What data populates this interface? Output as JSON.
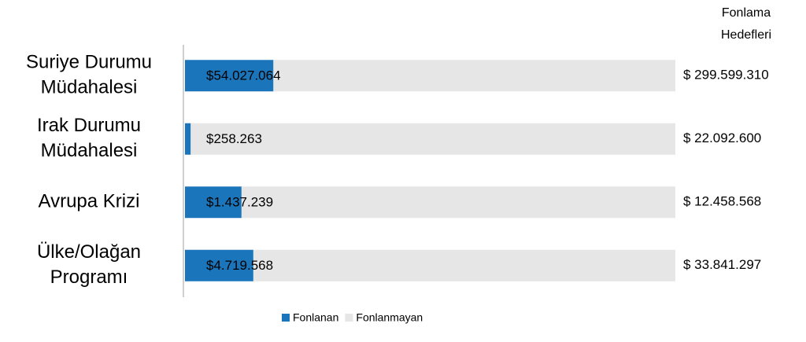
{
  "chart_data": {
    "type": "bar",
    "orientation": "horizontal",
    "stacking": "percent",
    "categories": [
      "Suriye Durumu\nMüdahalesi",
      "Irak Durumu\nMüdahalesi",
      "Avrupa Krizi",
      "Ülke/Olağan\nProgramı"
    ],
    "series": [
      {
        "name": "Fonlanan",
        "color": "#1b75bb",
        "values": [
          54027064,
          258263,
          1437239,
          4719568
        ],
        "value_labels": [
          "$54.027.064",
          "$258.263",
          "$1.437.239",
          "$4.719.568"
        ]
      },
      {
        "name": "Fonlanmayan",
        "color": "#e6e6e6",
        "values": [
          245572246,
          21834337,
          11021329,
          29121729
        ]
      }
    ],
    "targets_title": "Fonlama\nHedefleri",
    "targets": [
      299599310,
      22092600,
      12458568,
      33841297
    ],
    "target_labels": [
      "$ 299.599.310",
      "$ 22.092.600",
      "$ 12.458.568",
      "$ 33.841.297"
    ],
    "legend": "bottom"
  }
}
